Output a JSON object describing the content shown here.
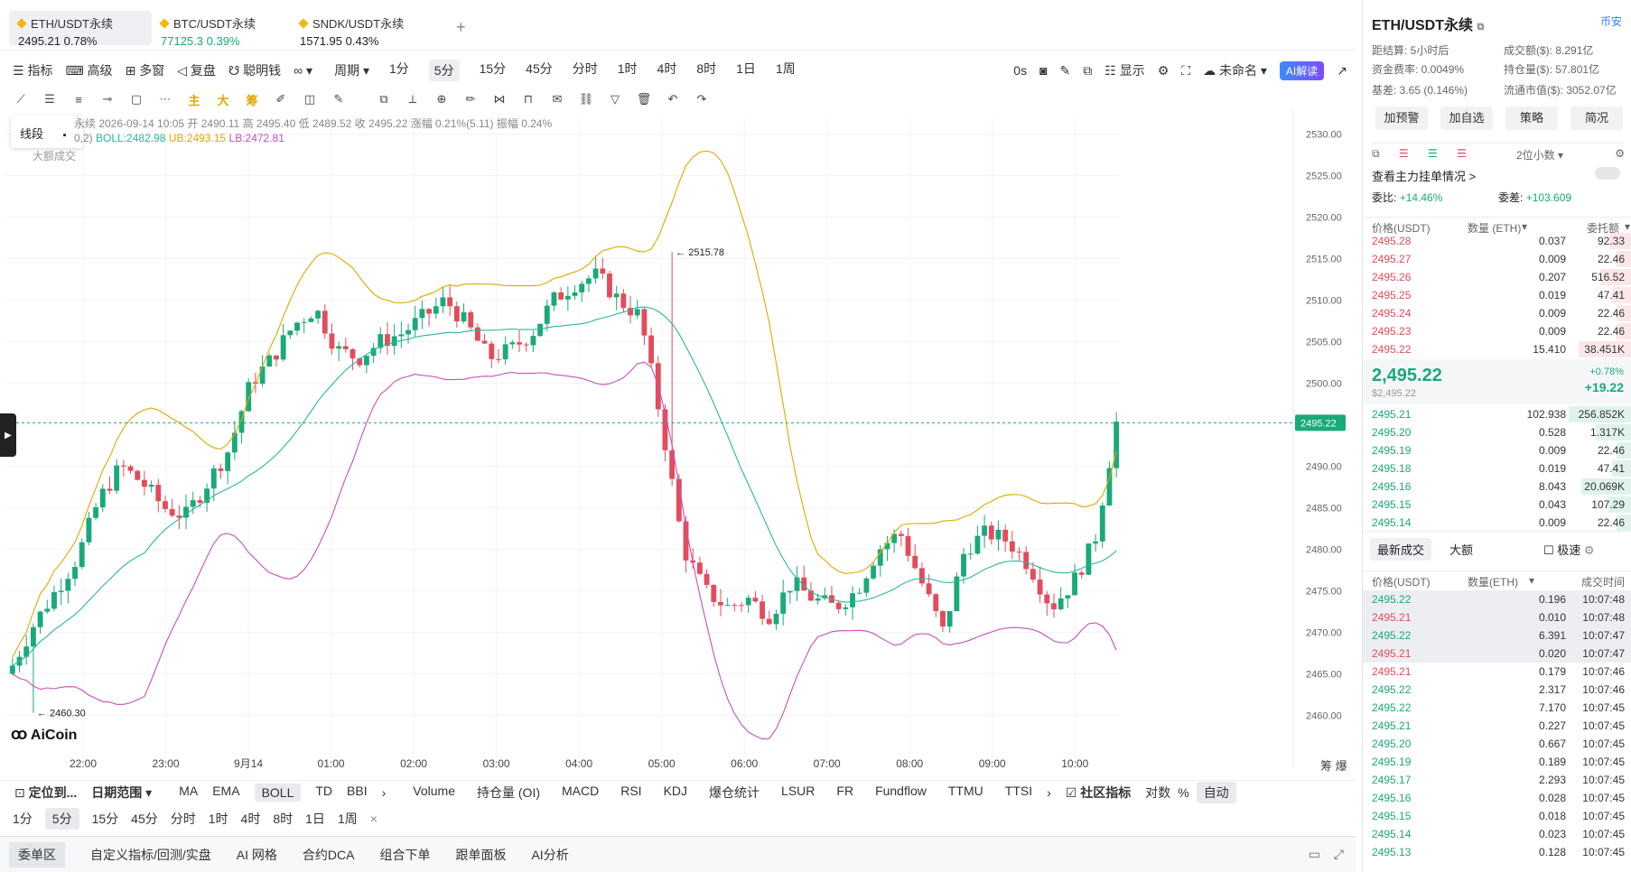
{
  "tabs": [
    {
      "name": "ETH/USDT永续",
      "price": "2495.21",
      "chg": "0.78%",
      "up": true,
      "active": true
    },
    {
      "name": "BTC/USDT永续",
      "price": "77125.3",
      "chg": "0.39%",
      "up": true,
      "active": false
    },
    {
      "name": "SNDK/USDT永续",
      "price": "1571.95",
      "chg": "0.43%",
      "up": true,
      "active": false
    }
  ],
  "toolbar": {
    "indicator": "指标",
    "advanced": "高级",
    "multi": "多窗",
    "replay": "复盘",
    "smart": "聪明钱",
    "period": "周期",
    "periods": [
      "1分",
      "5分",
      "15分",
      "45分",
      "分时",
      "1时",
      "4时",
      "8时",
      "1日",
      "1周"
    ],
    "selected_period": "5分",
    "timer": "0s",
    "display": "显示",
    "unnamed": "未命名",
    "ai": "AI解读"
  },
  "toolbar2_icons": [
    "line-icon",
    "hline-icon",
    "channel-icon",
    "ray-icon",
    "rect-icon",
    "more-icon",
    "主",
    "大",
    "筹",
    "brush-icon",
    "fib-icon",
    "pen-icon",
    "copy-icon",
    "ruler-icon",
    "zoom-icon",
    "eraser-icon",
    "magnet-icon",
    "lock-icon",
    "note-icon",
    "link-icon",
    "filter-icon",
    "trash-icon",
    "undo-icon",
    "redo-icon"
  ],
  "chart": {
    "popup": "线段",
    "ohlc": "永续  2026-09-14 10:05  开 2490.11  高 2495.40  低 2489.52  收 2495.22  涨幅 0.21%(5.11)  振幅 0.24%",
    "boll_params": "0,2)",
    "boll": "BOLL:2482.98",
    "ub": "UB:2493.15",
    "lb": "LB:2472.81",
    "bigtrade": "大额成交",
    "high_mark": "← 2515.78",
    "low_mark": "← 2460.30",
    "price_tag": "2495.22",
    "logo": "AiCoin",
    "y_ticks": [
      "2530.00",
      "2525.00",
      "2520.00",
      "2515.00",
      "2510.00",
      "2505.00",
      "2500.00",
      "2495.00",
      "2490.00",
      "2485.00",
      "2480.00",
      "2475.00",
      "2470.00",
      "2465.00",
      "2460.00"
    ],
    "x_ticks": [
      "22:00",
      "23:00",
      "9月14",
      "01:00",
      "02:00",
      "03:00",
      "04:00",
      "05:00",
      "06:00",
      "07:00",
      "08:00",
      "09:00",
      "10:00"
    ],
    "corner": "筹  爆"
  },
  "chart_data": {
    "type": "candlestick",
    "ylim": [
      2457,
      2532
    ],
    "x": [
      "22:00",
      "23:00",
      "9月14",
      "01:00",
      "02:00",
      "03:00",
      "04:00",
      "05:00",
      "06:00",
      "07:00",
      "08:00",
      "09:00",
      "10:00"
    ],
    "close_path": [
      2466,
      2471,
      2475,
      2479,
      2486,
      2490,
      2488,
      2485,
      2484,
      2488,
      2492,
      2500,
      2503,
      2507,
      2509,
      2504,
      2503,
      2505,
      2506,
      2508,
      2510,
      2507,
      2503,
      2504,
      2506,
      2510,
      2512,
      2513,
      2510,
      2508,
      2495,
      2480,
      2475,
      2473,
      2474,
      2472,
      2476,
      2474,
      2473,
      2475,
      2480,
      2482,
      2476,
      2470,
      2480,
      2482,
      2481,
      2478,
      2473,
      2476,
      2481,
      2495.22
    ],
    "high": 2515.78,
    "low": 2460.3,
    "last": 2495.22
  },
  "bottom_ctrl": {
    "locate": "定位到...",
    "range": "日期范围",
    "inds": [
      "MA",
      "EMA",
      "BOLL",
      "TD",
      "BBI"
    ],
    "active_ind": "BOLL",
    "subs": [
      "Volume",
      "持仓量 (OI)",
      "MACD",
      "RSI",
      "KDJ",
      "爆仓统计",
      "LSUR",
      "FR",
      "Fundflow",
      "TTMU",
      "TTSI"
    ],
    "community": "社区指标",
    "log": "对数",
    "pct": "%",
    "auto": "自动"
  },
  "bottom_periods": [
    "1分",
    "5分",
    "15分",
    "45分",
    "分时",
    "1时",
    "4时",
    "8时",
    "1日",
    "1周"
  ],
  "bottombar": [
    "委单区",
    "自定义指标/回测/实盘",
    "AI 网格",
    "合约DCA",
    "组合下单",
    "跟单面板",
    "AI分析"
  ],
  "right": {
    "title": "ETH/USDT永续",
    "exchange": "币安",
    "settle": "距结算: 5小时后",
    "volume": "成交额($): 8.291亿",
    "funding": "资金费率: 0.0049%",
    "oi": "持仓量($): 57.801亿",
    "basis": "基差: 3.65 (0.146%)",
    "mcap": "流通市值($): 3052.07亿",
    "btns": [
      "加预警",
      "加自选",
      "策略",
      "简况"
    ],
    "decimals": "2位小数",
    "depth": "查看主力挂单情况 >",
    "ratio_label": "委比:",
    "ratio": "+14.46%",
    "diff_label": "委差:",
    "diff": "+103.609",
    "ob_hdr": [
      "价格(USDT)",
      "数量 (ETH)",
      "委托额"
    ],
    "asks": [
      [
        "2495.28",
        "0.037",
        "92.33"
      ],
      [
        "2495.27",
        "0.009",
        "22.46"
      ],
      [
        "2495.26",
        "0.207",
        "516.52"
      ],
      [
        "2495.25",
        "0.019",
        "47.41"
      ],
      [
        "2495.24",
        "0.009",
        "22.46"
      ],
      [
        "2495.23",
        "0.009",
        "22.46"
      ],
      [
        "2495.22",
        "15.410",
        "38.451K"
      ]
    ],
    "last": "2,495.22",
    "last_sub": "$2,495.22",
    "last_pct": "+0.78%",
    "last_chg": "+19.22",
    "bids": [
      [
        "2495.21",
        "102.938",
        "256.852K"
      ],
      [
        "2495.20",
        "0.528",
        "1.317K"
      ],
      [
        "2495.19",
        "0.009",
        "22.46"
      ],
      [
        "2495.18",
        "0.019",
        "47.41"
      ],
      [
        "2495.16",
        "8.043",
        "20.069K"
      ],
      [
        "2495.15",
        "0.043",
        "107.29"
      ],
      [
        "2495.14",
        "0.009",
        "22.46"
      ]
    ],
    "trade_tabs": [
      "最新成交",
      "大额",
      "极速"
    ],
    "tr_hdr": [
      "价格(USDT)",
      "数量(ETH)",
      "成交时间"
    ],
    "trades": [
      [
        "2495.22",
        "0.196",
        "10:07:48",
        1
      ],
      [
        "2495.21",
        "0.010",
        "10:07:48",
        0
      ],
      [
        "2495.22",
        "6.391",
        "10:07:47",
        1
      ],
      [
        "2495.21",
        "0.020",
        "10:07:47",
        0
      ],
      [
        "2495.21",
        "0.179",
        "10:07:46",
        0
      ],
      [
        "2495.22",
        "2.317",
        "10:07:46",
        1
      ],
      [
        "2495.22",
        "7.170",
        "10:07:45",
        1
      ],
      [
        "2495.21",
        "0.227",
        "10:07:45",
        1
      ],
      [
        "2495.20",
        "0.667",
        "10:07:45",
        1
      ],
      [
        "2495.19",
        "0.189",
        "10:07:45",
        1
      ],
      [
        "2495.17",
        "2.293",
        "10:07:45",
        1
      ],
      [
        "2495.16",
        "0.028",
        "10:07:45",
        1
      ],
      [
        "2495.15",
        "0.018",
        "10:07:45",
        1
      ],
      [
        "2495.14",
        "0.023",
        "10:07:45",
        1
      ],
      [
        "2495.13",
        "0.128",
        "10:07:45",
        1
      ]
    ]
  }
}
